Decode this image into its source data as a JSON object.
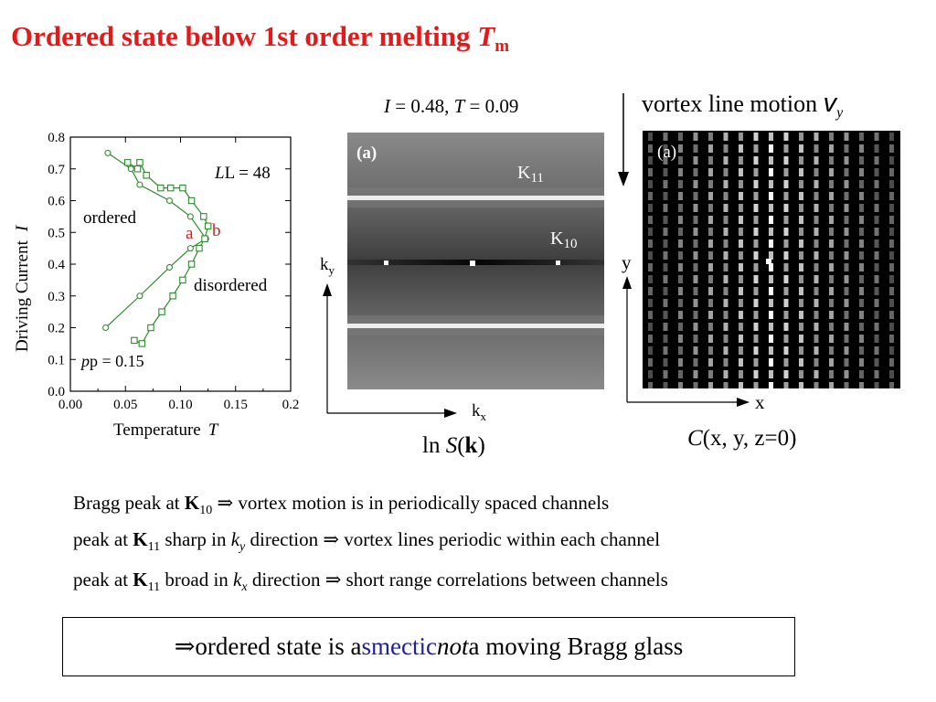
{
  "title": {
    "main": "Ordered state below 1st order melting ",
    "symbol": "T",
    "subscript": "m"
  },
  "chart_data": {
    "type": "line",
    "xlabel_text": "Temperature",
    "xlabel_symbol": "T",
    "ylabel_text": "Driving Current",
    "ylabel_symbol": "I",
    "xlim": [
      0.0,
      0.2
    ],
    "ylim": [
      0.0,
      0.8
    ],
    "xticks": [
      "0.00",
      "0.05",
      "0.10",
      "0.15",
      "0.2"
    ],
    "yticks": [
      "0.0",
      "0.1",
      "0.2",
      "0.3",
      "0.4",
      "0.5",
      "0.6",
      "0.7",
      "0.8"
    ],
    "series": [
      {
        "marker": "circle",
        "x": [
          0.034,
          0.055,
          0.063,
          0.09,
          0.109,
          0.123,
          0.109,
          0.09,
          0.063,
          0.032
        ],
        "y": [
          0.75,
          0.7,
          0.65,
          0.6,
          0.55,
          0.48,
          0.45,
          0.39,
          0.3,
          0.2
        ]
      },
      {
        "marker": "square",
        "x": [
          0.052,
          0.061,
          0.063,
          0.069,
          0.082,
          0.091,
          0.102,
          0.11,
          0.121,
          0.125,
          0.122,
          0.117,
          0.11,
          0.102,
          0.093,
          0.083,
          0.073,
          0.065,
          0.058
        ],
        "y": [
          0.72,
          0.7,
          0.72,
          0.68,
          0.64,
          0.64,
          0.64,
          0.6,
          0.55,
          0.52,
          0.48,
          0.45,
          0.4,
          0.35,
          0.3,
          0.25,
          0.2,
          0.15,
          0.16
        ]
      }
    ],
    "annotations": {
      "L_label": "L = 48",
      "p_label": "p = 0.15",
      "ordered": "ordered",
      "disordered": "disordered",
      "a": "a",
      "b": "b"
    }
  },
  "panel_s": {
    "caption_I": "I",
    "caption_I_val": " = 0.48,  ",
    "caption_T": "T",
    "caption_T_val": " = 0.09",
    "tag": "(a)",
    "k11": "K",
    "k11_sub": "11",
    "k10": "K",
    "k10_sub": "10",
    "ky": "k",
    "ky_sub": "y",
    "kx": "k",
    "kx_sub": "x",
    "bottom_pre": "ln ",
    "bottom_S": "S",
    "bottom_k": "k"
  },
  "panel_c": {
    "caption": "vortex line motion ",
    "v": "v",
    "v_sub": "y",
    "tag": "(a)",
    "y": "y",
    "x": "x",
    "bottom_C": "C",
    "bottom_rest": "(x, y, z=0)"
  },
  "bullets": [
    {
      "a": "Bragg peak at ",
      "b": "K",
      "c": "10",
      "d": " ⇒  vortex motion is in periodically spaced channels"
    },
    {
      "a": "peak at ",
      "b": "K",
      "c": "11",
      "d": " sharp in ",
      "e": "k",
      "f": "y",
      "g": " direction ⇒ vortex lines periodic within each channel"
    },
    {
      "a": "peak at ",
      "b": "K",
      "c": "11",
      "d": " broad in ",
      "e": "k",
      "f": "x",
      "g": " direction ⇒ short range correlations between channels"
    }
  ],
  "conclusion": {
    "arrow": "⇒  ",
    "pre": "ordered state is a ",
    "accent": "smectic",
    "mid": " ",
    "em": "not",
    "post": " a moving Bragg glass"
  },
  "colors": {
    "title": "#e21a1a",
    "plot_line": "#2e8b2e",
    "annot": "#cc2222",
    "accent": "#1f1f9e"
  }
}
